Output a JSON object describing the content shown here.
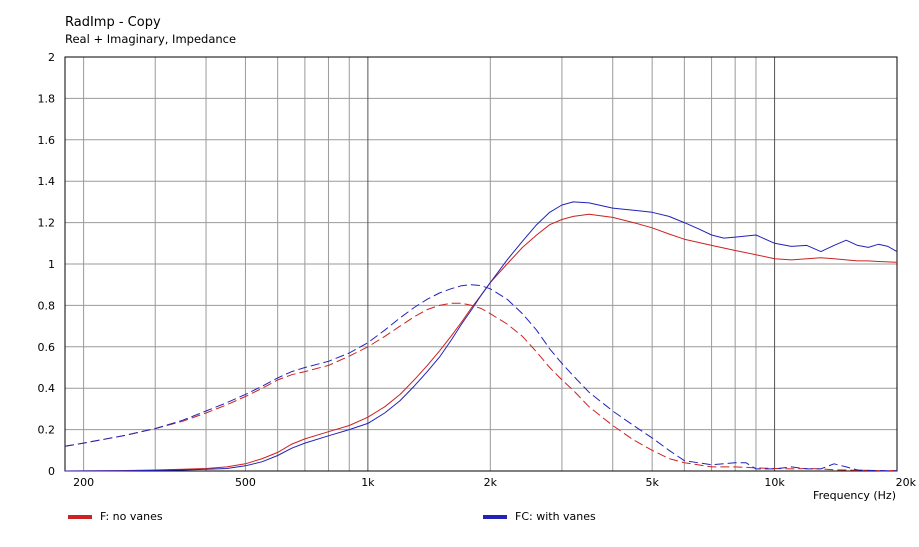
{
  "chart_data": {
    "type": "line",
    "title": "RadImp - Copy",
    "subtitle": "Real + Imaginary, Impedance",
    "xlabel": "Frequency  (Hz)",
    "ylabel": "",
    "x_scale": "log",
    "xlim": [
      180,
      20000
    ],
    "ylim": [
      0,
      2
    ],
    "grid": true,
    "legend_position": "bottom",
    "x_tick_labels": [
      {
        "value": 200,
        "label": "200"
      },
      {
        "value": 500,
        "label": "500"
      },
      {
        "value": 1000,
        "label": "1k"
      },
      {
        "value": 2000,
        "label": "2k"
      },
      {
        "value": 5000,
        "label": "5k"
      },
      {
        "value": 10000,
        "label": "10k"
      },
      {
        "value": 20000,
        "label": "20k"
      }
    ],
    "y_ticks": [
      0,
      0.2,
      0.4,
      0.6,
      0.8,
      1,
      1.2,
      1.4,
      1.6,
      1.8,
      2
    ],
    "y_tick_labels": [
      "0",
      "0.2",
      "0.4",
      "0.6",
      "0.8",
      "1",
      "1.2",
      "1.4",
      "1.6",
      "1.8",
      "2"
    ],
    "series": [
      {
        "name": "F: no vanes",
        "color": "#cc2222",
        "curves": [
          {
            "part": "real",
            "dash": "solid",
            "x": [
              180,
              250,
              300,
              350,
              400,
              450,
              500,
              550,
              600,
              650,
              700,
              800,
              900,
              1000,
              1100,
              1200,
              1300,
              1400,
              1500,
              1600,
              1700,
              1800,
              1900,
              2000,
              2200,
              2400,
              2600,
              2800,
              3000,
              3200,
              3500,
              4000,
              4500,
              5000,
              5500,
              6000,
              7000,
              8000,
              9000,
              10000,
              11000,
              12000,
              13000,
              14000,
              15000,
              16000,
              17000,
              18000,
              19000,
              20000
            ],
            "y": [
              0,
              0.002,
              0.005,
              0.008,
              0.012,
              0.02,
              0.035,
              0.06,
              0.09,
              0.13,
              0.155,
              0.19,
              0.22,
              0.26,
              0.31,
              0.37,
              0.44,
              0.51,
              0.58,
              0.65,
              0.72,
              0.79,
              0.85,
              0.91,
              1.0,
              1.08,
              1.14,
              1.19,
              1.215,
              1.23,
              1.24,
              1.225,
              1.2,
              1.175,
              1.145,
              1.12,
              1.09,
              1.065,
              1.045,
              1.025,
              1.02,
              1.025,
              1.03,
              1.025,
              1.02,
              1.015,
              1.015,
              1.012,
              1.01,
              1.008
            ]
          },
          {
            "part": "imaginary",
            "dash": "dashed",
            "x": [
              180,
              200,
              250,
              300,
              350,
              400,
              450,
              500,
              550,
              600,
              650,
              700,
              800,
              900,
              1000,
              1100,
              1200,
              1300,
              1400,
              1500,
              1600,
              1700,
              1800,
              1900,
              2000,
              2200,
              2400,
              2600,
              2800,
              3000,
              3200,
              3500,
              4000,
              4500,
              5000,
              5500,
              6000,
              7000,
              8000,
              9000,
              10000,
              11000,
              12000,
              13000,
              14000,
              15000,
              16000,
              17000,
              18000,
              20000
            ],
            "y": [
              0.12,
              0.135,
              0.17,
              0.205,
              0.24,
              0.28,
              0.32,
              0.36,
              0.4,
              0.44,
              0.465,
              0.48,
              0.51,
              0.555,
              0.6,
              0.65,
              0.7,
              0.745,
              0.78,
              0.8,
              0.81,
              0.81,
              0.8,
              0.785,
              0.76,
              0.71,
              0.65,
              0.575,
              0.5,
              0.44,
              0.39,
              0.31,
              0.22,
              0.15,
              0.1,
              0.06,
              0.04,
              0.02,
              0.02,
              0.015,
              0.012,
              0.01,
              0.012,
              0.01,
              0.006,
              0.005,
              0.004,
              0.003,
              0.002,
              0.002
            ]
          }
        ]
      },
      {
        "name": "FC: with vanes",
        "color": "#2222bb",
        "curves": [
          {
            "part": "real",
            "dash": "solid",
            "x": [
              180,
              250,
              300,
              350,
              400,
              450,
              500,
              550,
              600,
              650,
              700,
              800,
              900,
              1000,
              1100,
              1200,
              1300,
              1400,
              1500,
              1600,
              1700,
              1800,
              1900,
              2000,
              2200,
              2400,
              2600,
              2800,
              3000,
              3200,
              3500,
              4000,
              4500,
              5000,
              5500,
              6000,
              6500,
              7000,
              7500,
              8000,
              9000,
              10000,
              11000,
              12000,
              13000,
              14000,
              15000,
              16000,
              17000,
              18000,
              19000,
              20000
            ],
            "y": [
              0,
              0.001,
              0.003,
              0.005,
              0.008,
              0.012,
              0.025,
              0.045,
              0.075,
              0.11,
              0.135,
              0.17,
              0.2,
              0.23,
              0.28,
              0.34,
              0.41,
              0.48,
              0.55,
              0.63,
              0.71,
              0.78,
              0.85,
              0.91,
              1.02,
              1.11,
              1.19,
              1.25,
              1.285,
              1.3,
              1.295,
              1.27,
              1.26,
              1.25,
              1.23,
              1.2,
              1.17,
              1.14,
              1.125,
              1.13,
              1.14,
              1.1,
              1.085,
              1.09,
              1.06,
              1.09,
              1.115,
              1.09,
              1.08,
              1.095,
              1.085,
              1.06
            ]
          },
          {
            "part": "imaginary",
            "dash": "dashed",
            "x": [
              180,
              200,
              250,
              300,
              350,
              400,
              450,
              500,
              550,
              600,
              650,
              700,
              800,
              900,
              1000,
              1100,
              1200,
              1300,
              1400,
              1500,
              1600,
              1700,
              1800,
              1900,
              2000,
              2200,
              2400,
              2600,
              2800,
              3000,
              3200,
              3500,
              4000,
              4500,
              5000,
              5500,
              6000,
              7000,
              8000,
              8500,
              9000,
              10000,
              11000,
              12000,
              13000,
              14000,
              15000,
              16000,
              17000,
              18000,
              20000
            ],
            "y": [
              0.12,
              0.135,
              0.17,
              0.205,
              0.245,
              0.29,
              0.33,
              0.37,
              0.41,
              0.45,
              0.48,
              0.5,
              0.53,
              0.57,
              0.62,
              0.68,
              0.74,
              0.79,
              0.83,
              0.86,
              0.88,
              0.895,
              0.9,
              0.895,
              0.88,
              0.83,
              0.76,
              0.68,
              0.59,
              0.52,
              0.46,
              0.38,
              0.29,
              0.22,
              0.16,
              0.1,
              0.05,
              0.03,
              0.04,
              0.04,
              0.01,
              0.01,
              0.02,
              0.01,
              0.01,
              0.035,
              0.02,
              0.005,
              0.003,
              0.002,
              0.001
            ]
          }
        ]
      }
    ]
  }
}
